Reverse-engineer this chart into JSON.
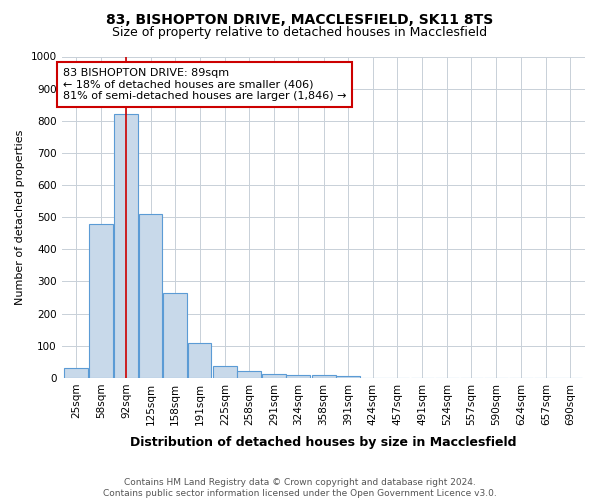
{
  "title": "83, BISHOPTON DRIVE, MACCLESFIELD, SK11 8TS",
  "subtitle": "Size of property relative to detached houses in Macclesfield",
  "xlabel": "Distribution of detached houses by size in Macclesfield",
  "ylabel": "Number of detached properties",
  "footer_line1": "Contains HM Land Registry data © Crown copyright and database right 2024.",
  "footer_line2": "Contains public sector information licensed under the Open Government Licence v3.0.",
  "bins": [
    25,
    58,
    92,
    125,
    158,
    191,
    225,
    258,
    291,
    324,
    358,
    391,
    424,
    457,
    491,
    524,
    557,
    590,
    624,
    657,
    690
  ],
  "values": [
    30,
    480,
    820,
    510,
    265,
    110,
    38,
    22,
    12,
    8,
    10,
    5,
    0,
    0,
    0,
    0,
    0,
    0,
    0,
    0,
    0
  ],
  "bar_color": "#c8d9ea",
  "bar_edge_color": "#5b9bd5",
  "property_line_x": 92,
  "property_line_color": "#cc0000",
  "annotation_text": "83 BISHOPTON DRIVE: 89sqm\n← 18% of detached houses are smaller (406)\n81% of semi-detached houses are larger (1,846) →",
  "annotation_box_edgecolor": "#cc0000",
  "annotation_bg_color": "#ffffff",
  "ylim": [
    0,
    1000
  ],
  "yticks": [
    0,
    100,
    200,
    300,
    400,
    500,
    600,
    700,
    800,
    900,
    1000
  ],
  "grid_color": "#c8d0d8",
  "background_color": "#ffffff",
  "title_fontsize": 10,
  "subtitle_fontsize": 9,
  "xlabel_fontsize": 9,
  "ylabel_fontsize": 8,
  "tick_fontsize": 7.5,
  "footer_fontsize": 6.5
}
